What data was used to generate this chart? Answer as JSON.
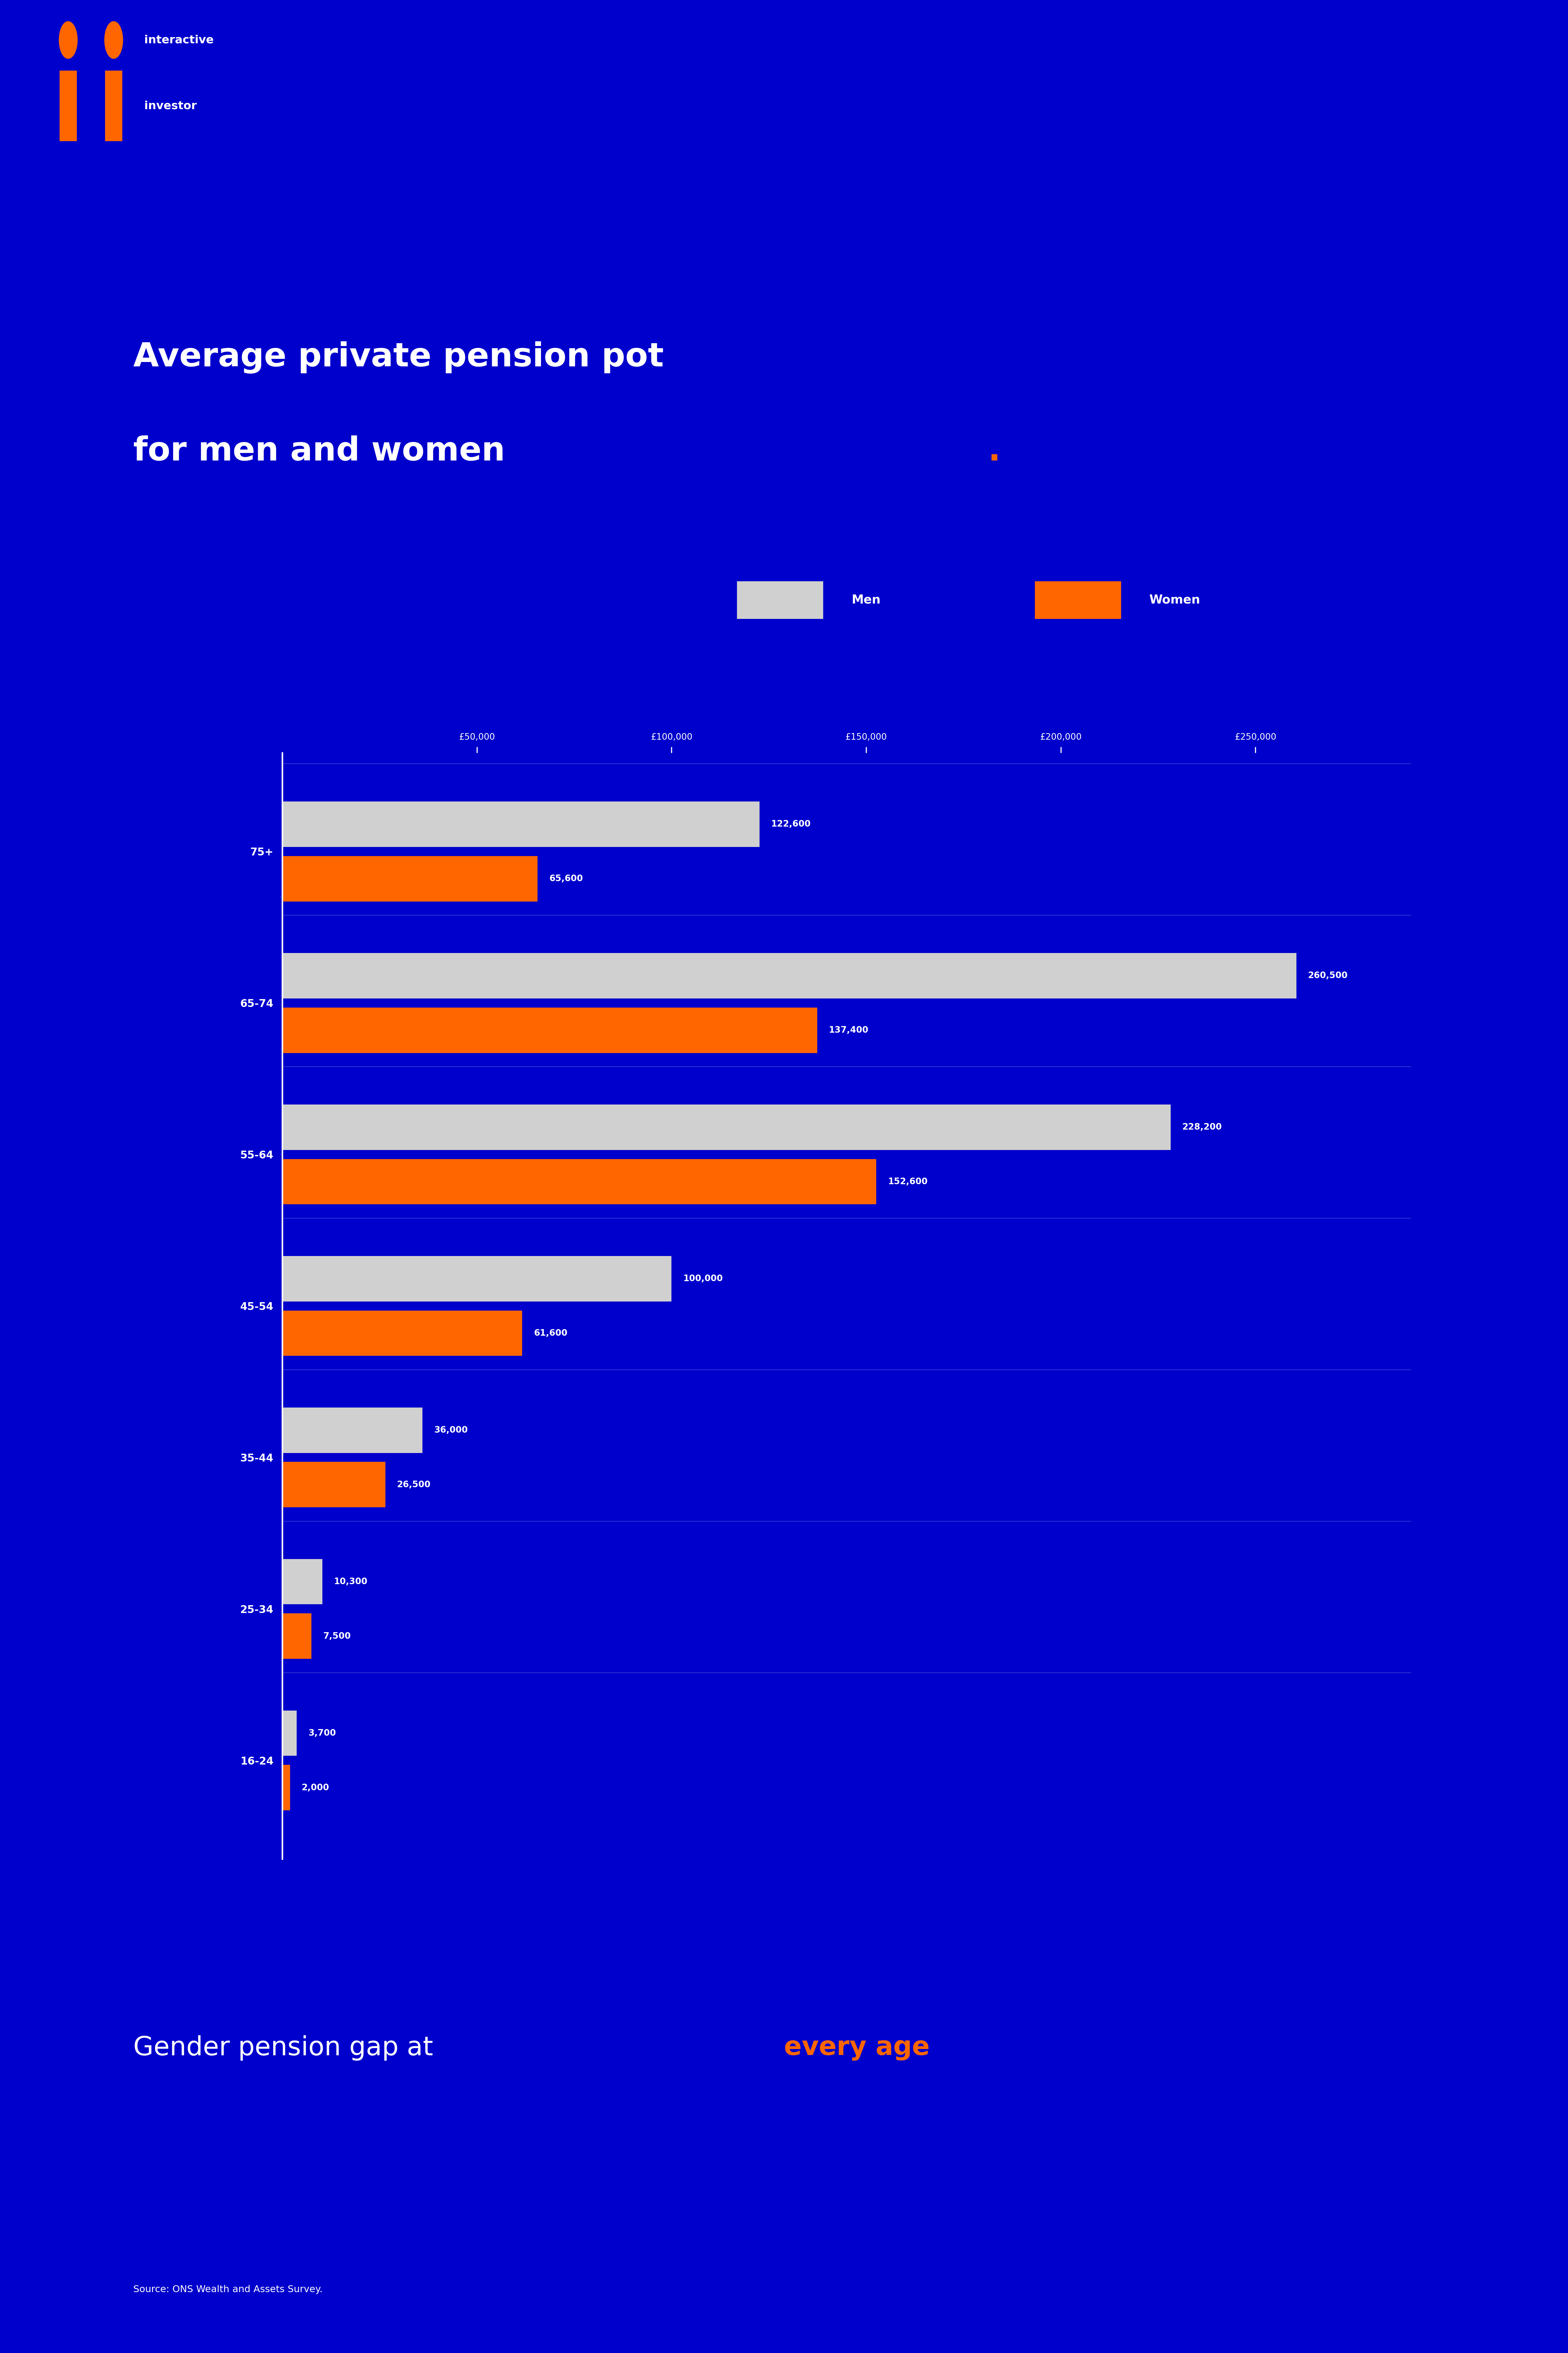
{
  "title_line1": "Average private pension pot",
  "title_line2": "for men and women",
  "title_dot": ".",
  "title_color_main": "#ffffff",
  "title_color_dot": "#FF6600",
  "background_color": "#0000cc",
  "bar_color_men": "#d0d0d0",
  "bar_color_women": "#FF6600",
  "categories": [
    "16-24",
    "25-34",
    "35-44",
    "45-54",
    "55-64",
    "65-74",
    "75+"
  ],
  "men_values": [
    3700,
    10300,
    36000,
    100000,
    228200,
    260500,
    122600
  ],
  "women_values": [
    2000,
    7500,
    26500,
    61600,
    152600,
    137400,
    65600
  ],
  "x_max": 290000,
  "x_ticks": [
    50000,
    100000,
    150000,
    200000,
    250000
  ],
  "x_tick_labels": [
    "£50,000",
    "£100,000",
    "£150,000",
    "£200,000",
    "£250,000"
  ],
  "legend_men_label": "Men",
  "legend_women_label": "Women",
  "footer_text": "Gender pension gap at ",
  "footer_highlight": "every age",
  "footer_color_main": "#ffffff",
  "footer_color_highlight": "#FF6600",
  "source_text": "Source: ONS Wealth and Assets Survey.",
  "logo_text_line1": "interactive",
  "logo_text_line2": "investor",
  "text_color": "#ffffff"
}
